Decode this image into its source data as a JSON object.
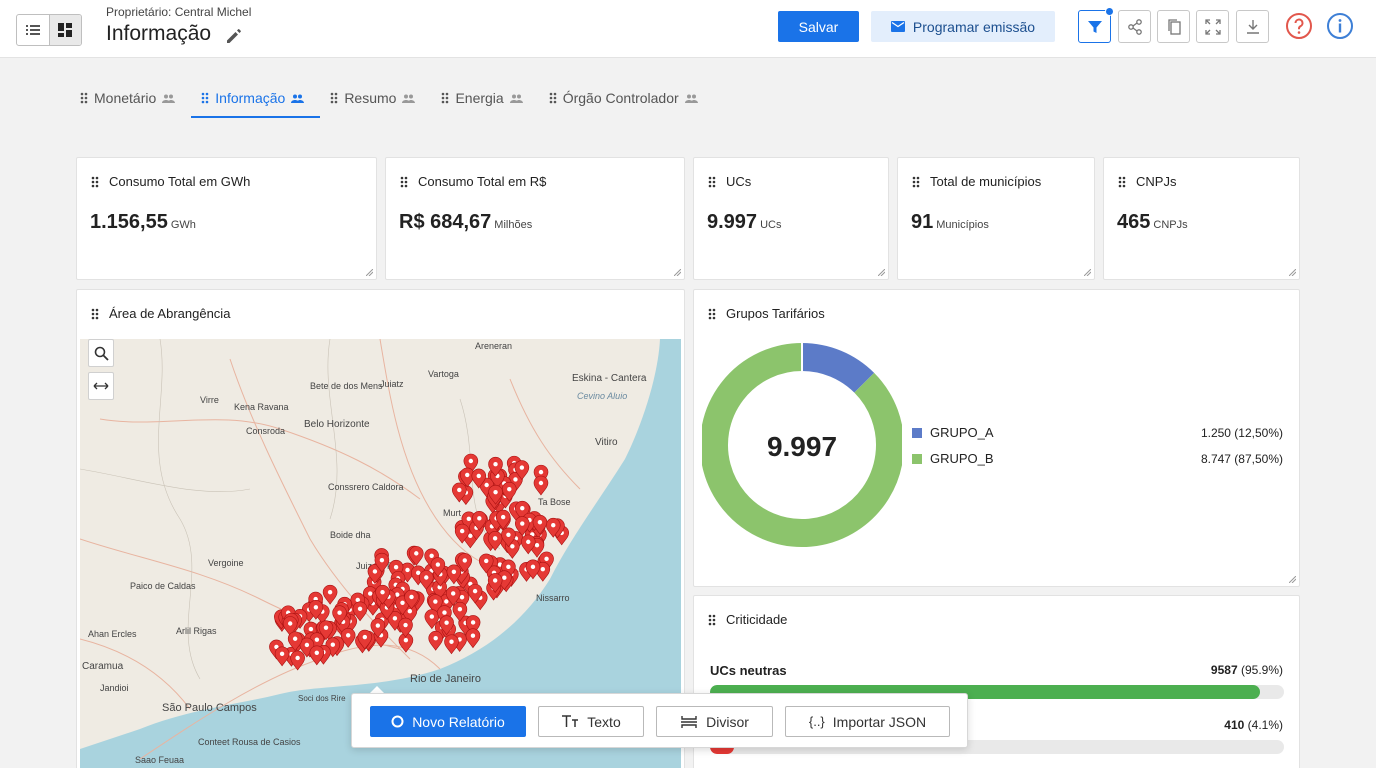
{
  "header": {
    "owner": "Proprietário: Central Michel",
    "title": "Informação",
    "save_label": "Salvar",
    "schedule_label": "Programar emissão"
  },
  "tabs": [
    {
      "label": "Monetário"
    },
    {
      "label": "Informação",
      "active": true
    },
    {
      "label": "Resumo"
    },
    {
      "label": "Energia"
    },
    {
      "label": "Órgão Controlador"
    }
  ],
  "kpis": [
    {
      "title": "Consumo Total em GWh",
      "value": "1.156,55",
      "unit": "GWh"
    },
    {
      "title": "Consumo Total em R$",
      "value": "R$ 684,67",
      "unit": "Milhões"
    },
    {
      "title": "UCs",
      "value": "9.997",
      "unit": "UCs"
    },
    {
      "title": "Total de municípios",
      "value": "91",
      "unit": "Municípios"
    },
    {
      "title": "CNPJs",
      "value": "465",
      "unit": "CNPJs"
    }
  ],
  "map_card": {
    "title": "Área de Abrangência",
    "places": [
      "Areneran",
      "Bete de dos Mens",
      "Juiatz",
      "Vartoga",
      "Eskina - Cantera",
      "Cevino Aluio",
      "Virre",
      "Kena Ravana",
      "Belo Horizonte",
      "Consroda",
      "Vitiro",
      "Conssrero Caldora",
      "Ta Bose",
      "Murt",
      "Boide dha",
      "Vergoine",
      "Juiz de Forra",
      "Paico de Caldas",
      "Arlil Rigas",
      "Ahan Ercles",
      "Caramua",
      "Jandioi",
      "São Paulo Campos",
      "Conteet Rousa de Casios",
      "Saao Feuaa",
      "Rio de Janeiro",
      "Soci dos Rire",
      "Nissarro"
    ]
  },
  "donut_card": {
    "title": "Grupos Tarifários",
    "total": "9.997",
    "colors": {
      "GRUPO_A": "#5c7bc8",
      "GRUPO_B": "#8cc46c"
    },
    "chart_data": {
      "type": "pie",
      "categories": [
        "GRUPO_A",
        "GRUPO_B"
      ],
      "values": [
        1250,
        8747
      ],
      "value_labels": [
        "1.250 (12,50%)",
        "8.747 (87,50%)"
      ],
      "center_label": "9.997"
    }
  },
  "crit_card": {
    "title": "Criticidade",
    "rows": [
      {
        "label": "UCs neutras",
        "count": "9587",
        "pct": "(95.9%)",
        "fraction": 0.959,
        "color": "#4caf50"
      },
      {
        "label": "",
        "count": "410",
        "pct": "(4.1%)",
        "fraction": 0.041,
        "color": "#e53935"
      }
    ]
  },
  "float_toolbar": {
    "new_report": "Novo Relatório",
    "text": "Texto",
    "divider": "Divisor",
    "import_json": "Importar JSON"
  }
}
